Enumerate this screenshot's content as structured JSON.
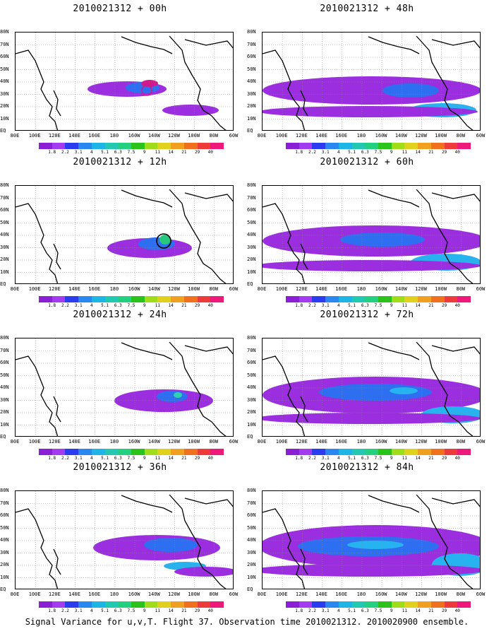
{
  "panels": [
    {
      "title": "2010021312 + 00h",
      "blobs": [
        {
          "c": 1,
          "x": 158,
          "y": 120,
          "rx": 56,
          "ry": 11
        },
        {
          "c": 2,
          "x": 180,
          "y": 118,
          "rx": 24,
          "ry": 8
        },
        {
          "c": 6,
          "x": 190,
          "y": 112,
          "rx": 12,
          "ry": 5
        },
        {
          "c": 1,
          "x": 248,
          "y": 150,
          "rx": 40,
          "ry": 8
        },
        {
          "c": 0,
          "x": 48,
          "y": 148,
          "rx": 26,
          "ry": 7
        }
      ],
      "ring": {
        "x": 186,
        "y": 122,
        "r": 7,
        "color": "#d0188c"
      }
    },
    {
      "title": "2010021312 + 12h",
      "blobs": [
        {
          "c": 1,
          "x": 190,
          "y": 128,
          "rx": 60,
          "ry": 14
        },
        {
          "c": 2,
          "x": 200,
          "y": 122,
          "rx": 26,
          "ry": 9
        },
        {
          "c": 5,
          "x": 212,
          "y": 116,
          "rx": 8,
          "ry": 7
        },
        {
          "c": 0,
          "x": 60,
          "y": 150,
          "rx": 70,
          "ry": 6
        },
        {
          "c": 0,
          "x": 230,
          "y": 152,
          "rx": 50,
          "ry": 6
        }
      ],
      "ring": {
        "x": 210,
        "y": 118,
        "r": 10,
        "color": "#000000"
      }
    },
    {
      "title": "2010021312 + 24h",
      "blobs": [
        {
          "c": 1,
          "x": 210,
          "y": 128,
          "rx": 70,
          "ry": 16
        },
        {
          "c": 2,
          "x": 222,
          "y": 122,
          "rx": 22,
          "ry": 8
        },
        {
          "c": 4,
          "x": 230,
          "y": 120,
          "rx": 6,
          "ry": 4
        },
        {
          "c": 0,
          "x": 80,
          "y": 152,
          "rx": 90,
          "ry": 7
        },
        {
          "c": 0,
          "x": 250,
          "y": 154,
          "rx": 60,
          "ry": 6
        }
      ]
    },
    {
      "title": "2010021312 + 36h",
      "blobs": [
        {
          "c": 1,
          "x": 200,
          "y": 120,
          "rx": 90,
          "ry": 18
        },
        {
          "c": 2,
          "x": 220,
          "y": 116,
          "rx": 38,
          "ry": 10
        },
        {
          "c": 3,
          "x": 240,
          "y": 146,
          "rx": 30,
          "ry": 6
        },
        {
          "c": 0,
          "x": 70,
          "y": 150,
          "rx": 80,
          "ry": 7
        },
        {
          "c": 1,
          "x": 270,
          "y": 154,
          "rx": 45,
          "ry": 7
        }
      ]
    },
    {
      "title": "2010021312 + 48h",
      "blobs": [
        {
          "c": 1,
          "x": 155,
          "y": 122,
          "rx": 155,
          "ry": 20
        },
        {
          "c": 2,
          "x": 210,
          "y": 122,
          "rx": 40,
          "ry": 10
        },
        {
          "c": 3,
          "x": 255,
          "y": 150,
          "rx": 48,
          "ry": 10
        },
        {
          "c": 1,
          "x": 150,
          "y": 152,
          "rx": 155,
          "ry": 8
        }
      ]
    },
    {
      "title": "2010021312 + 60h",
      "blobs": [
        {
          "c": 1,
          "x": 160,
          "y": 118,
          "rx": 160,
          "ry": 22
        },
        {
          "c": 2,
          "x": 170,
          "y": 116,
          "rx": 60,
          "ry": 10
        },
        {
          "c": 3,
          "x": 260,
          "y": 148,
          "rx": 50,
          "ry": 12
        },
        {
          "c": 1,
          "x": 150,
          "y": 153,
          "rx": 160,
          "ry": 8
        }
      ]
    },
    {
      "title": "2010021312 + 72h",
      "blobs": [
        {
          "c": 1,
          "x": 160,
          "y": 120,
          "rx": 160,
          "ry": 26
        },
        {
          "c": 2,
          "x": 160,
          "y": 116,
          "rx": 80,
          "ry": 12
        },
        {
          "c": 3,
          "x": 200,
          "y": 114,
          "rx": 20,
          "ry": 5
        },
        {
          "c": 3,
          "x": 270,
          "y": 148,
          "rx": 45,
          "ry": 12
        },
        {
          "c": 1,
          "x": 150,
          "y": 153,
          "rx": 160,
          "ry": 8
        }
      ]
    },
    {
      "title": "2010021312 + 84h",
      "blobs": [
        {
          "c": 1,
          "x": 160,
          "y": 118,
          "rx": 165,
          "ry": 30
        },
        {
          "c": 2,
          "x": 150,
          "y": 118,
          "rx": 100,
          "ry": 14
        },
        {
          "c": 3,
          "x": 160,
          "y": 116,
          "rx": 40,
          "ry": 6
        },
        {
          "c": 3,
          "x": 280,
          "y": 144,
          "rx": 40,
          "ry": 16
        },
        {
          "c": 1,
          "x": 150,
          "y": 152,
          "rx": 165,
          "ry": 9
        }
      ]
    }
  ],
  "y_labels": [
    "80N",
    "70N",
    "60N",
    "50N",
    "40N",
    "30N",
    "20N",
    "10N",
    "EQ"
  ],
  "x_labels": [
    "80E",
    "100E",
    "120E",
    "140E",
    "160E",
    "180",
    "160W",
    "140W",
    "120W",
    "100W",
    "80W",
    "60W"
  ],
  "colorbar": {
    "colors": [
      "#8a1fd6",
      "#a33cf0",
      "#2a3bf0",
      "#2a86f0",
      "#1cb5e6",
      "#22c9b0",
      "#22d080",
      "#2cc21c",
      "#a0dc18",
      "#e0d21c",
      "#f0a01e",
      "#f0701e",
      "#ee3a3a",
      "#ee1a7a"
    ],
    "labels": [
      "1.8",
      "2.2",
      "3.1",
      "4",
      "5.1",
      "6.3",
      "7.5",
      "9",
      "11",
      "14",
      "21",
      "29",
      "40"
    ]
  },
  "fill_palette": [
    "#ffffff",
    "#9b2fe0",
    "#2e6ef0",
    "#27b3f0",
    "#2fd0b0",
    "#25c87c",
    "#d0188c"
  ],
  "footer": "Signal Variance for u,v,T. Flight 37. Observation time 2010021312. 2010020900 ensemble."
}
